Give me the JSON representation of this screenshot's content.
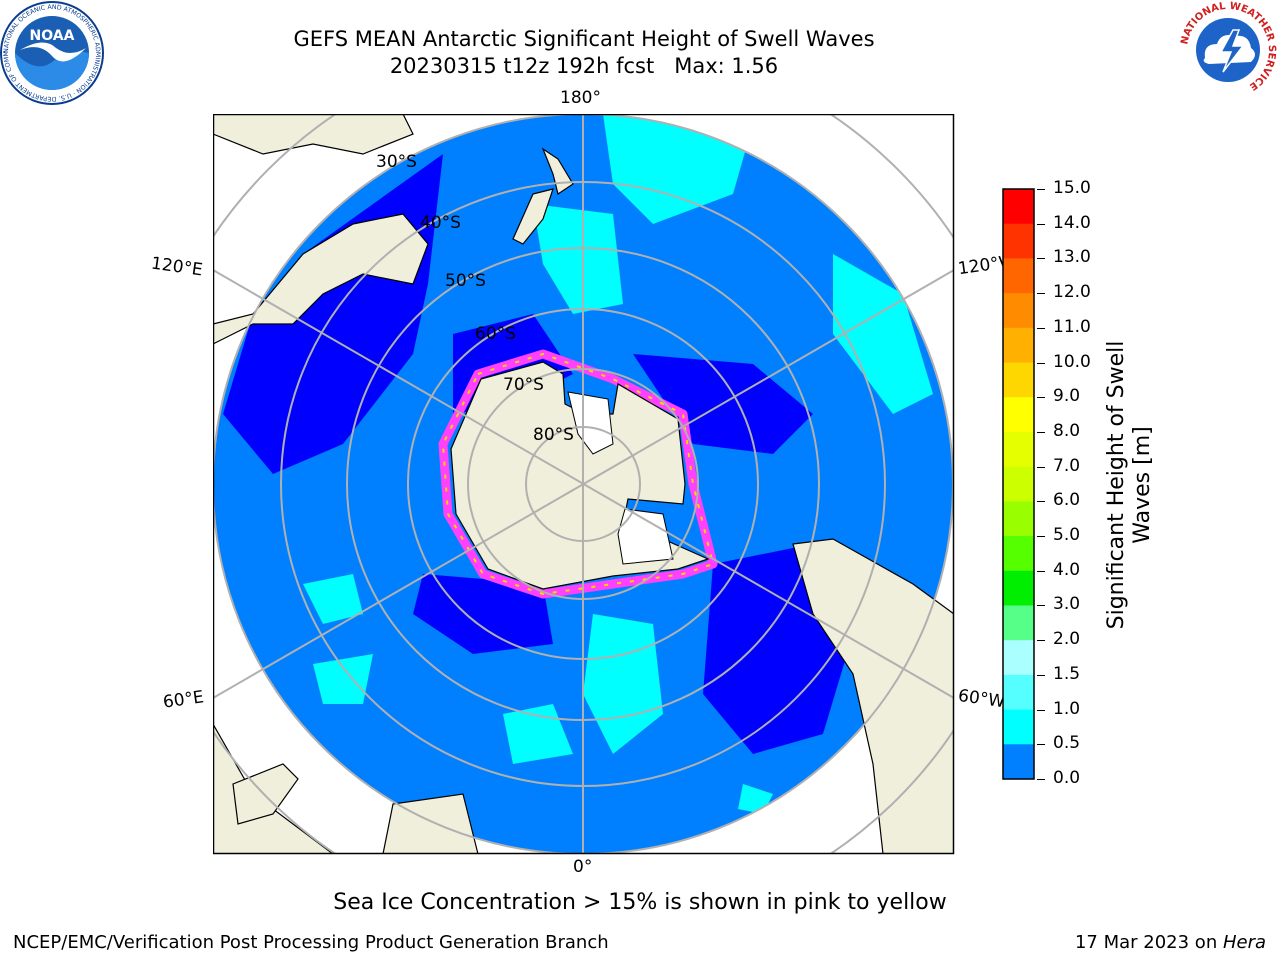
{
  "title": {
    "line1": "GEFS MEAN Antarctic Significant Height of Swell Waves",
    "line2": "20230315 t12z 192h fcst   Max: 1.56"
  },
  "logos": {
    "noaa": {
      "text": "NOAA",
      "ring_text": "NATIONAL OCEANIC AND ATMOSPHERIC ADMINISTRATION · U.S. DEPARTMENT OF COMMERCE"
    },
    "nws": {
      "ring_text": "NATIONAL WEATHER SERVICE"
    }
  },
  "map": {
    "projection": "south-polar-stereographic",
    "lon_labels": {
      "top": "180°",
      "bottom": "0°",
      "left_upper": "120°E",
      "left_lower": "60°E",
      "right_upper": "120°W",
      "right_lower": "60°W"
    },
    "lat_labels": [
      "30°S",
      "40°S",
      "50°S",
      "60°S",
      "70°S",
      "80°S"
    ],
    "colors": {
      "land": "#efefdc",
      "ocean_0_05": "#0000ff",
      "ocean_05_1": "#0080ff",
      "ocean_1_15": "#00ffff",
      "graticule": "#b0b0b0",
      "ice_edge": "#ff40ff"
    }
  },
  "colorbar": {
    "label_line1": "Significant Height of Swell",
    "label_line2": "Waves [m]",
    "ticks": [
      "15.0",
      "14.0",
      "13.0",
      "12.0",
      "11.0",
      "10.0",
      "9.0",
      "8.0",
      "7.0",
      "6.0",
      "5.0",
      "4.0",
      "3.0",
      "2.0",
      "1.5",
      "1.0",
      "0.5",
      "0.0"
    ],
    "colors": [
      "#ff0000",
      "#ff3300",
      "#ff6600",
      "#ff8c00",
      "#ffb000",
      "#ffd700",
      "#ffff00",
      "#e6ff00",
      "#ccff00",
      "#99ff00",
      "#55ff00",
      "#00ee00",
      "#55ff88",
      "#aaffff",
      "#55ffff",
      "#00ffff",
      "#0080ff",
      "#0000ff"
    ]
  },
  "caption": "Sea Ice Concentration > 15% is shown in pink to yellow",
  "footer": {
    "left": "NCEP/EMC/Verification Post Processing Product Generation Branch",
    "date": "17 Mar 2023 on ",
    "host": "Hera"
  }
}
